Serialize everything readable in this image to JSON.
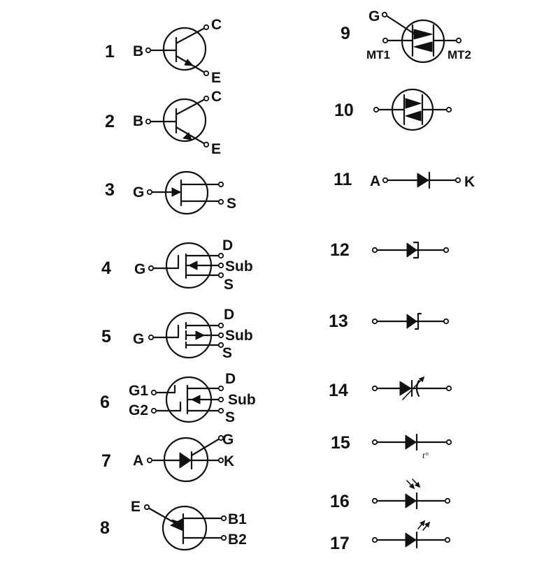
{
  "symbols": [
    {
      "number": "1",
      "pins": {
        "base": "B",
        "collector": "C",
        "emitter": "E"
      }
    },
    {
      "number": "2",
      "pins": {
        "base": "B",
        "collector": "C",
        "emitter": "E"
      }
    },
    {
      "number": "3",
      "pins": {
        "gate": "G",
        "source": "S"
      }
    },
    {
      "number": "4",
      "pins": {
        "gate": "G",
        "drain": "D",
        "substrate": "Sub",
        "source": "S"
      }
    },
    {
      "number": "5",
      "pins": {
        "gate": "G",
        "drain": "D",
        "substrate": "Sub",
        "source": "S"
      }
    },
    {
      "number": "6",
      "pins": {
        "gate1": "G1",
        "gate2": "G2",
        "drain": "D",
        "substrate": "Sub",
        "source": "S"
      }
    },
    {
      "number": "7",
      "pins": {
        "anode": "A",
        "gate": "G",
        "cathode": "K"
      }
    },
    {
      "number": "8",
      "pins": {
        "emitter": "E",
        "base1": "B1",
        "base2": "B2"
      }
    },
    {
      "number": "9",
      "pins": {
        "gate": "G",
        "mt1": "MT1",
        "mt2": "MT2"
      }
    },
    {
      "number": "10",
      "pins": {}
    },
    {
      "number": "11",
      "pins": {
        "anode": "A",
        "cathode": "K"
      }
    },
    {
      "number": "12",
      "pins": {}
    },
    {
      "number": "13",
      "pins": {}
    },
    {
      "number": "14",
      "pins": {}
    },
    {
      "number": "15",
      "pins": {
        "temp": "t°"
      }
    },
    {
      "number": "16",
      "pins": {}
    },
    {
      "number": "17",
      "pins": {}
    }
  ]
}
